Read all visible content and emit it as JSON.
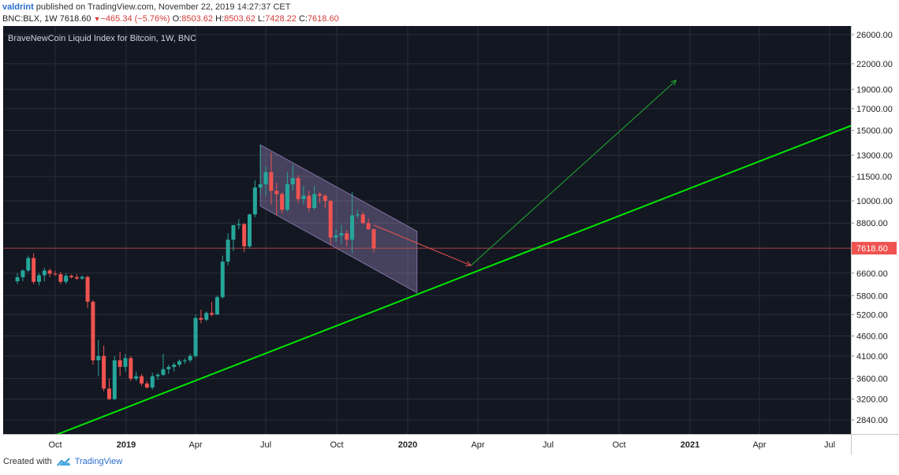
{
  "header": {
    "author": "valdrint",
    "published_text": "published on TradingView.com, November 22, 2019 14:27:37 CET",
    "symbol": "BNC:BLX, 1W",
    "last": "7618.60",
    "change_arrow": "▼",
    "change": "−465.34 (−5.76%)",
    "open_label": "O:",
    "open": "8503.62",
    "high_label": "H:",
    "high": "8503.62",
    "low_label": "L:",
    "low": "7428.22",
    "close_label": "C:",
    "close": "7618.60"
  },
  "footer": {
    "created_with": "Created with",
    "brand": "TradingView"
  },
  "colors": {
    "up": "#26a69a",
    "down": "#ef5350",
    "support": "#00e600",
    "channel": "#b39ddb",
    "projection": "#1fae2f",
    "price_line": "#ef5350",
    "background": "#131722"
  },
  "chart_data": {
    "type": "candlestick",
    "title": "BraveNewCoin Liquid Index for Bitcoin, 1W, BNC",
    "price_scale": "log",
    "ylim": [
      2600,
      28000
    ],
    "y_ticks": [
      "26000.00",
      "22000.00",
      "19000.00",
      "17000.00",
      "15000.00",
      "13000.00",
      "11500.00",
      "10000.00",
      "8800.00",
      "7618.60",
      "6600.00",
      "5800.00",
      "5200.00",
      "4600.00",
      "4100.00",
      "3600.00",
      "3200.00",
      "2840.00"
    ],
    "last_price": "7618.60",
    "x_ticks": [
      {
        "label": "Oct",
        "date": "2018-10-01",
        "bold": false
      },
      {
        "label": "2019",
        "date": "2019-01-01",
        "bold": true
      },
      {
        "label": "Apr",
        "date": "2019-04-01",
        "bold": false
      },
      {
        "label": "Jul",
        "date": "2019-07-01",
        "bold": false
      },
      {
        "label": "Oct",
        "date": "2019-10-01",
        "bold": false
      },
      {
        "label": "2020",
        "date": "2020-01-01",
        "bold": true
      },
      {
        "label": "Apr",
        "date": "2020-04-01",
        "bold": false
      },
      {
        "label": "Jul",
        "date": "2020-07-01",
        "bold": false
      },
      {
        "label": "Oct",
        "date": "2020-10-01",
        "bold": false
      },
      {
        "label": "2021",
        "date": "2021-01-01",
        "bold": true
      },
      {
        "label": "Apr",
        "date": "2021-04-01",
        "bold": false
      },
      {
        "label": "Jul",
        "date": "2021-07-01",
        "bold": false
      }
    ],
    "candles": [
      {
        "date": "2018-08-13",
        "open": 6300,
        "high": 6600,
        "low": 6200,
        "close": 6450
      },
      {
        "date": "2018-08-20",
        "open": 6450,
        "high": 6750,
        "low": 6300,
        "close": 6700
      },
      {
        "date": "2018-08-27",
        "open": 6700,
        "high": 7300,
        "low": 6650,
        "close": 7200
      },
      {
        "date": "2018-09-03",
        "open": 7200,
        "high": 7400,
        "low": 6200,
        "close": 6280
      },
      {
        "date": "2018-09-10",
        "open": 6280,
        "high": 6600,
        "low": 6150,
        "close": 6520
      },
      {
        "date": "2018-09-17",
        "open": 6520,
        "high": 6800,
        "low": 6300,
        "close": 6700
      },
      {
        "date": "2018-09-24",
        "open": 6700,
        "high": 6780,
        "low": 6450,
        "close": 6580
      },
      {
        "date": "2018-10-01",
        "open": 6580,
        "high": 6700,
        "low": 6500,
        "close": 6560
      },
      {
        "date": "2018-10-08",
        "open": 6560,
        "high": 6650,
        "low": 6200,
        "close": 6280
      },
      {
        "date": "2018-10-15",
        "open": 6280,
        "high": 6600,
        "low": 6200,
        "close": 6500
      },
      {
        "date": "2018-10-22",
        "open": 6500,
        "high": 6550,
        "low": 6400,
        "close": 6450
      },
      {
        "date": "2018-10-29",
        "open": 6450,
        "high": 6560,
        "low": 6350,
        "close": 6400
      },
      {
        "date": "2018-11-05",
        "open": 6400,
        "high": 6520,
        "low": 6350,
        "close": 6460
      },
      {
        "date": "2018-11-12",
        "open": 6460,
        "high": 6500,
        "low": 5400,
        "close": 5600
      },
      {
        "date": "2018-11-19",
        "open": 5600,
        "high": 5650,
        "low": 3900,
        "close": 4000
      },
      {
        "date": "2018-11-26",
        "open": 4000,
        "high": 4500,
        "low": 3650,
        "close": 4100
      },
      {
        "date": "2018-12-03",
        "open": 4100,
        "high": 4350,
        "low": 3350,
        "close": 3400
      },
      {
        "date": "2018-12-10",
        "open": 3400,
        "high": 3600,
        "low": 3180,
        "close": 3200
      },
      {
        "date": "2018-12-17",
        "open": 3200,
        "high": 4100,
        "low": 3180,
        "close": 4000
      },
      {
        "date": "2018-12-24",
        "open": 4000,
        "high": 4200,
        "low": 3650,
        "close": 3850
      },
      {
        "date": "2018-12-31",
        "open": 3850,
        "high": 4150,
        "low": 3750,
        "close": 4050
      },
      {
        "date": "2019-01-07",
        "open": 4050,
        "high": 4100,
        "low": 3550,
        "close": 3600
      },
      {
        "date": "2019-01-14",
        "open": 3600,
        "high": 3750,
        "low": 3550,
        "close": 3650
      },
      {
        "date": "2019-01-21",
        "open": 3650,
        "high": 3700,
        "low": 3450,
        "close": 3500
      },
      {
        "date": "2019-01-28",
        "open": 3500,
        "high": 3550,
        "low": 3400,
        "close": 3420
      },
      {
        "date": "2019-02-04",
        "open": 3420,
        "high": 3720,
        "low": 3380,
        "close": 3650
      },
      {
        "date": "2019-02-11",
        "open": 3650,
        "high": 3720,
        "low": 3580,
        "close": 3680
      },
      {
        "date": "2019-02-18",
        "open": 3680,
        "high": 4150,
        "low": 3650,
        "close": 3800
      },
      {
        "date": "2019-02-25",
        "open": 3800,
        "high": 3900,
        "low": 3700,
        "close": 3850
      },
      {
        "date": "2019-03-04",
        "open": 3850,
        "high": 3950,
        "low": 3750,
        "close": 3900
      },
      {
        "date": "2019-03-11",
        "open": 3900,
        "high": 4020,
        "low": 3850,
        "close": 3980
      },
      {
        "date": "2019-03-18",
        "open": 3980,
        "high": 4050,
        "low": 3920,
        "close": 4000
      },
      {
        "date": "2019-03-25",
        "open": 4000,
        "high": 4150,
        "low": 3950,
        "close": 4100
      },
      {
        "date": "2019-04-01",
        "open": 4100,
        "high": 5200,
        "low": 4050,
        "close": 5100
      },
      {
        "date": "2019-04-08",
        "open": 5100,
        "high": 5350,
        "low": 4950,
        "close": 5050
      },
      {
        "date": "2019-04-15",
        "open": 5050,
        "high": 5300,
        "low": 5000,
        "close": 5250
      },
      {
        "date": "2019-04-22",
        "open": 5250,
        "high": 5600,
        "low": 5150,
        "close": 5200
      },
      {
        "date": "2019-04-29",
        "open": 5200,
        "high": 5800,
        "low": 5200,
        "close": 5750
      },
      {
        "date": "2019-05-06",
        "open": 5750,
        "high": 7300,
        "low": 5700,
        "close": 7050
      },
      {
        "date": "2019-05-13",
        "open": 7050,
        "high": 8300,
        "low": 6900,
        "close": 8000
      },
      {
        "date": "2019-05-20",
        "open": 8000,
        "high": 8700,
        "low": 7500,
        "close": 8700
      },
      {
        "date": "2019-05-27",
        "open": 8700,
        "high": 9000,
        "low": 8500,
        "close": 8750
      },
      {
        "date": "2019-06-03",
        "open": 8750,
        "high": 8800,
        "low": 7450,
        "close": 7700
      },
      {
        "date": "2019-06-10",
        "open": 7700,
        "high": 9300,
        "low": 7600,
        "close": 9250
      },
      {
        "date": "2019-06-17",
        "open": 9250,
        "high": 11250,
        "low": 9100,
        "close": 10800
      },
      {
        "date": "2019-06-24",
        "open": 10800,
        "high": 13800,
        "low": 10400,
        "close": 11000
      },
      {
        "date": "2019-07-01",
        "open": 11000,
        "high": 12200,
        "low": 10300,
        "close": 11800
      },
      {
        "date": "2019-07-08",
        "open": 11800,
        "high": 13200,
        "low": 9800,
        "close": 10600
      },
      {
        "date": "2019-07-15",
        "open": 10600,
        "high": 11100,
        "low": 9200,
        "close": 10400
      },
      {
        "date": "2019-07-22",
        "open": 10400,
        "high": 10500,
        "low": 9300,
        "close": 9500
      },
      {
        "date": "2019-07-29",
        "open": 9500,
        "high": 11800,
        "low": 9400,
        "close": 11000
      },
      {
        "date": "2019-08-05",
        "open": 11000,
        "high": 12300,
        "low": 10600,
        "close": 11400
      },
      {
        "date": "2019-08-12",
        "open": 11400,
        "high": 11600,
        "low": 9900,
        "close": 10100
      },
      {
        "date": "2019-08-19",
        "open": 10100,
        "high": 10900,
        "low": 9800,
        "close": 10300
      },
      {
        "date": "2019-08-26",
        "open": 10300,
        "high": 10600,
        "low": 9400,
        "close": 9600
      },
      {
        "date": "2019-09-02",
        "open": 9600,
        "high": 10900,
        "low": 9500,
        "close": 10400
      },
      {
        "date": "2019-09-09",
        "open": 10400,
        "high": 10500,
        "low": 9900,
        "close": 10300
      },
      {
        "date": "2019-09-16",
        "open": 10300,
        "high": 10400,
        "low": 9600,
        "close": 10000
      },
      {
        "date": "2019-09-23",
        "open": 10000,
        "high": 10050,
        "low": 7750,
        "close": 8100
      },
      {
        "date": "2019-09-30",
        "open": 8100,
        "high": 8500,
        "low": 7900,
        "close": 8200
      },
      {
        "date": "2019-10-07",
        "open": 8200,
        "high": 8700,
        "low": 7800,
        "close": 8300
      },
      {
        "date": "2019-10-14",
        "open": 8300,
        "high": 8450,
        "low": 7700,
        "close": 8000
      },
      {
        "date": "2019-10-21",
        "open": 8000,
        "high": 10500,
        "low": 7400,
        "close": 9200
      },
      {
        "date": "2019-10-28",
        "open": 9200,
        "high": 9500,
        "low": 9050,
        "close": 9250
      },
      {
        "date": "2019-11-04",
        "open": 9250,
        "high": 9400,
        "low": 8750,
        "close": 8800
      },
      {
        "date": "2019-11-11",
        "open": 8800,
        "high": 9050,
        "low": 8450,
        "close": 8500
      },
      {
        "date": "2019-11-18",
        "open": 8503.62,
        "high": 8503.62,
        "low": 7428.22,
        "close": 7618.6
      }
    ],
    "channel": {
      "upper": [
        {
          "date": "2019-06-24",
          "price": 13800
        },
        {
          "date": "2020-01-13",
          "price": 8400
        }
      ],
      "lower": [
        {
          "date": "2019-06-24",
          "price": 9700
        },
        {
          "date": "2020-01-13",
          "price": 5900
        }
      ]
    },
    "support_line": [
      {
        "date": "2018-10-01",
        "price": 2600
      },
      {
        "date": "2021-08-16",
        "price": 15900
      }
    ],
    "projection": [
      {
        "date": "2019-11-18",
        "price": 8700
      },
      {
        "date": "2020-03-23",
        "price": 6900
      },
      {
        "date": "2020-12-14",
        "price": 20000
      }
    ]
  }
}
